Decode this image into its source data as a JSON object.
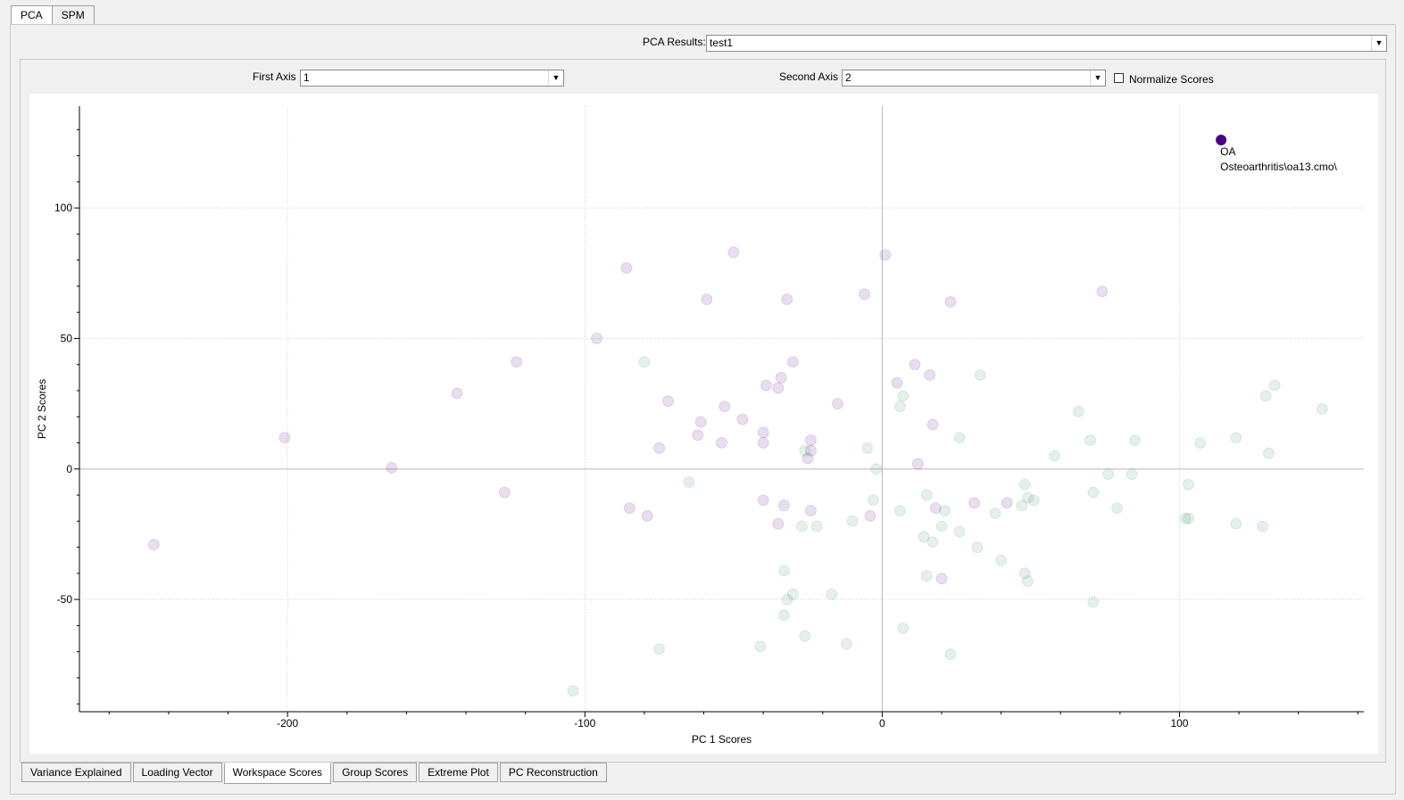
{
  "top_tabs": [
    "PCA",
    "SPM"
  ],
  "results": {
    "label": "PCA Results:",
    "value": "test1"
  },
  "axes": {
    "first_label": "First Axis",
    "first_value": "1",
    "second_label": "Second Axis",
    "second_value": "2",
    "normalize_label": "Normalize Scores",
    "normalize_checked": false
  },
  "bottom_tabs": [
    "Variance Explained",
    "Loading Vector",
    "Workspace Scores",
    "Group Scores",
    "Extreme Plot",
    "PC Reconstruction"
  ],
  "chart_data": {
    "type": "scatter",
    "xlabel": "PC 1 Scores",
    "ylabel": "PC 2 Scores",
    "xlim": [
      -270,
      162
    ],
    "ylim": [
      -93,
      139
    ],
    "x_ticks": [
      -200,
      -100,
      0,
      100
    ],
    "y_ticks": [
      -50,
      0,
      50,
      100
    ],
    "grid": true,
    "colors": {
      "purple": "#4b0082",
      "green": "#2e8b57"
    },
    "highlight": {
      "x": 114,
      "y": 126,
      "label_line1": "OA",
      "label_line2": "Osteoarthritis\\oa13.cmo\\"
    },
    "series": [
      {
        "color": "purple",
        "points": [
          [
            -245,
            -29
          ],
          [
            -201,
            12
          ],
          [
            -165,
            0.5
          ],
          [
            -143,
            29
          ],
          [
            -127,
            -9
          ],
          [
            -123,
            41
          ],
          [
            -96,
            50
          ],
          [
            -86,
            77
          ],
          [
            -85,
            -15
          ],
          [
            -79,
            -18
          ],
          [
            -75,
            8
          ],
          [
            -72,
            26
          ],
          [
            -62,
            13
          ],
          [
            -61,
            18
          ],
          [
            -59,
            65
          ],
          [
            -54,
            10
          ],
          [
            -53,
            24
          ],
          [
            -50,
            83
          ],
          [
            -47,
            19
          ],
          [
            -40,
            14
          ],
          [
            -40,
            10
          ],
          [
            -40,
            -12
          ],
          [
            -39,
            32
          ],
          [
            -35,
            -21
          ],
          [
            -35,
            31
          ],
          [
            -34,
            35
          ],
          [
            -33,
            -14
          ],
          [
            -32,
            65
          ],
          [
            -30,
            41
          ],
          [
            -25,
            4
          ],
          [
            -24,
            11
          ],
          [
            -24,
            7
          ],
          [
            -24,
            -16
          ],
          [
            -15,
            25
          ],
          [
            -6,
            67
          ],
          [
            -4,
            -18
          ],
          [
            1,
            82
          ],
          [
            5,
            33
          ],
          [
            11,
            40
          ],
          [
            12,
            2
          ],
          [
            16,
            36
          ],
          [
            17,
            17
          ],
          [
            18,
            -15
          ],
          [
            20,
            -42
          ],
          [
            23,
            64
          ],
          [
            31,
            -13
          ],
          [
            42,
            -13
          ],
          [
            74,
            68
          ]
        ]
      },
      {
        "color": "green",
        "points": [
          [
            -104,
            -85
          ],
          [
            -80,
            41
          ],
          [
            -75,
            -69
          ],
          [
            -65,
            -5
          ],
          [
            -41,
            -68
          ],
          [
            -33,
            -39
          ],
          [
            -33,
            -56
          ],
          [
            -32,
            -50
          ],
          [
            -30,
            -48
          ],
          [
            -27,
            -22
          ],
          [
            -26,
            -64
          ],
          [
            -26,
            7
          ],
          [
            -22,
            -22
          ],
          [
            -17,
            -48
          ],
          [
            -12,
            -67
          ],
          [
            -10,
            -20
          ],
          [
            -5,
            8
          ],
          [
            -3,
            -12
          ],
          [
            -2,
            0
          ],
          [
            6,
            -16
          ],
          [
            6,
            24
          ],
          [
            7,
            28
          ],
          [
            7,
            -61
          ],
          [
            14,
            -26
          ],
          [
            15,
            -10
          ],
          [
            15,
            -41
          ],
          [
            17,
            -28
          ],
          [
            20,
            -22
          ],
          [
            21,
            -16
          ],
          [
            23,
            -71
          ],
          [
            26,
            12
          ],
          [
            26,
            -24
          ],
          [
            32,
            -30
          ],
          [
            33,
            36
          ],
          [
            38,
            -17
          ],
          [
            40,
            -35
          ],
          [
            47,
            -14
          ],
          [
            48,
            -6
          ],
          [
            48,
            -40
          ],
          [
            49,
            -43
          ],
          [
            49,
            -11
          ],
          [
            51,
            -12
          ],
          [
            58,
            5
          ],
          [
            66,
            22
          ],
          [
            70,
            11
          ],
          [
            71,
            -9
          ],
          [
            71,
            -51
          ],
          [
            76,
            -2
          ],
          [
            79,
            -15
          ],
          [
            84,
            -2
          ],
          [
            85,
            11
          ],
          [
            102,
            -19
          ],
          [
            103,
            -19
          ],
          [
            103,
            -6
          ],
          [
            107,
            10
          ],
          [
            119,
            12
          ],
          [
            119,
            -21
          ],
          [
            128,
            -22
          ],
          [
            129,
            28
          ],
          [
            130,
            6
          ],
          [
            132,
            32
          ],
          [
            148,
            23
          ]
        ]
      }
    ]
  }
}
